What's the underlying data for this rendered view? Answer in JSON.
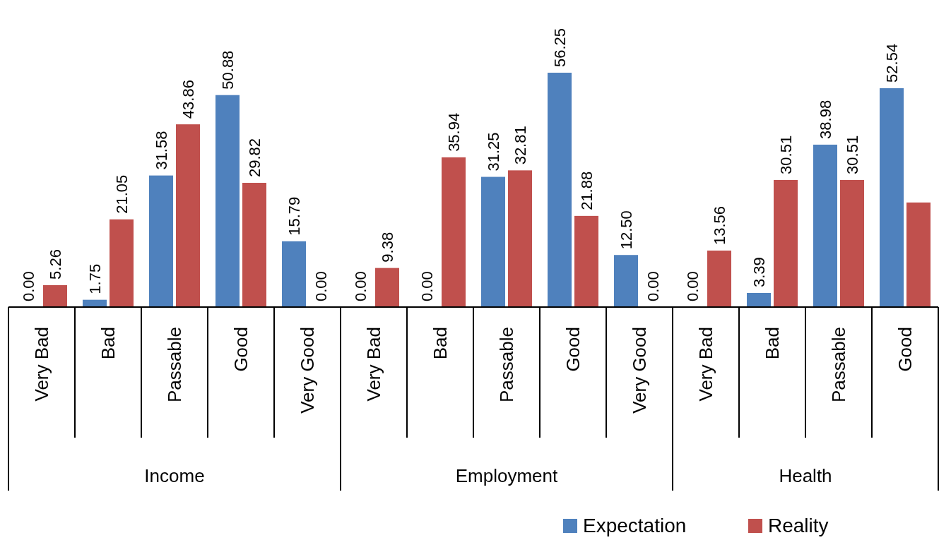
{
  "chart_data": [
    {
      "type": "bar",
      "xlabel": "Income",
      "categories": [
        "Very Bad",
        "Bad",
        "Passable",
        "Good",
        "Very Good"
      ],
      "series": [
        {
          "color": "#4f81bd",
          "values": [
            0,
            1.75,
            31.58,
            50.88,
            15.79
          ],
          "value_labels": [
            "0.00",
            "1.75",
            "31.58",
            "50.88",
            "15.79"
          ]
        },
        {
          "color": "#c0504d",
          "values": [
            5.26,
            21.05,
            43.86,
            29.82,
            0
          ],
          "value_labels": [
            "5.26",
            "21.05",
            "43.86",
            "29.82",
            "0.00"
          ]
        }
      ]
    },
    {
      "type": "bar",
      "xlabel": "Employment",
      "categories": [
        "Very Bad",
        "Bad",
        "Passable",
        "Good",
        "Very Good"
      ],
      "series": [
        {
          "color": "#4f81bd",
          "values": [
            0,
            0,
            31.25,
            56.25,
            12.5
          ],
          "value_labels": [
            "0.00",
            "0.00",
            "31.25",
            "56.25",
            "12.50"
          ]
        },
        {
          "color": "#c0504d",
          "values": [
            9.38,
            35.94,
            32.81,
            21.88,
            0
          ],
          "value_labels": [
            "9.38",
            "35.94",
            "32.81",
            "21.88",
            "0.00"
          ]
        }
      ]
    },
    {
      "type": "bar",
      "xlabel": "Health",
      "categories": [
        "Very Bad",
        "Bad",
        "Passable",
        "Good"
      ],
      "legend": "bottom",
      "series": [
        {
          "name": "Expectation",
          "color": "#4f81bd",
          "values": [
            0,
            3.39,
            38.98,
            52.54
          ],
          "value_labels": [
            "0.00",
            "3.39",
            "38.98",
            "52.54"
          ]
        },
        {
          "name": "Reality",
          "color": "#c0504d",
          "values": [
            13.56,
            30.51,
            30.51,
            25.1
          ],
          "value_labels": [
            "13.56",
            "30.51",
            "30.51",
            null
          ]
        }
      ]
    }
  ]
}
